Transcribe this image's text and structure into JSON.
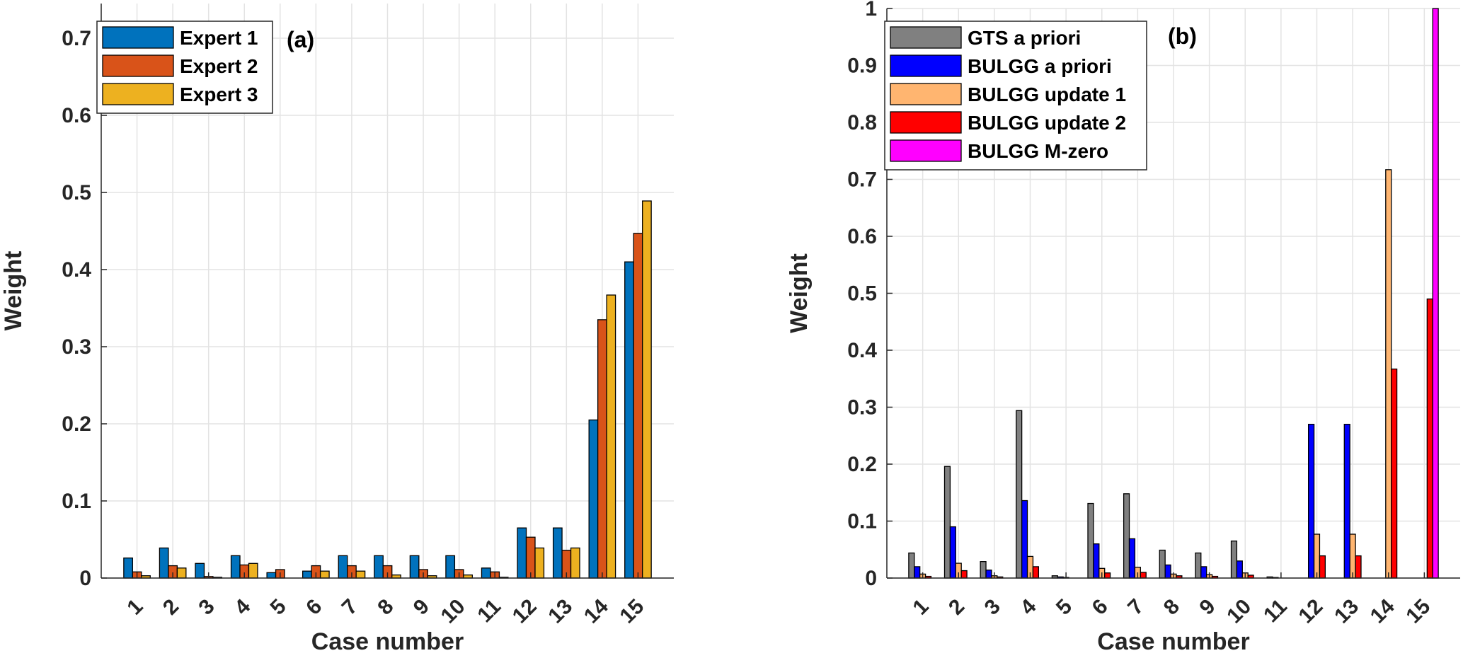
{
  "chart_data": [
    {
      "type": "bar",
      "panel_label": "(a)",
      "xlabel": "Case number",
      "ylabel": "Weight",
      "ylim": [
        0,
        0.745
      ],
      "yticks": [
        0,
        0.1,
        0.2,
        0.3,
        0.4,
        0.5,
        0.6,
        0.7
      ],
      "ytick_labels": [
        "0",
        "0.1",
        "0.2",
        "0.3",
        "0.4",
        "0.5",
        "0.6",
        "0.7"
      ],
      "categories": [
        "1",
        "2",
        "3",
        "4",
        "5",
        "6",
        "7",
        "8",
        "9",
        "10",
        "11",
        "12",
        "13",
        "14",
        "15"
      ],
      "grid": true,
      "legend_position": "top-left",
      "series": [
        {
          "name": "Expert 1",
          "color": "#0072BD",
          "values": [
            0.026,
            0.039,
            0.019,
            0.029,
            0.007,
            0.009,
            0.029,
            0.029,
            0.029,
            0.029,
            0.013,
            0.065,
            0.065,
            0.205,
            0.41
          ]
        },
        {
          "name": "Expert 2",
          "color": "#D95319",
          "values": [
            0.008,
            0.016,
            0.002,
            0.017,
            0.011,
            0.016,
            0.016,
            0.016,
            0.011,
            0.011,
            0.008,
            0.053,
            0.036,
            0.335,
            0.447
          ]
        },
        {
          "name": "Expert 3",
          "color": "#EDB120",
          "values": [
            0.003,
            0.013,
            0.001,
            0.019,
            0.0,
            0.009,
            0.009,
            0.004,
            0.003,
            0.004,
            0.001,
            0.039,
            0.039,
            0.367,
            0.489
          ]
        }
      ]
    },
    {
      "type": "bar",
      "panel_label": "(b)",
      "xlabel": "Case number",
      "ylabel": "Weight",
      "ylim": [
        0,
        1
      ],
      "yticks": [
        0,
        0.1,
        0.2,
        0.3,
        0.4,
        0.5,
        0.6,
        0.7,
        0.8,
        0.9,
        1
      ],
      "ytick_labels": [
        "0",
        "0.1",
        "0.2",
        "0.3",
        "0.4",
        "0.5",
        "0.6",
        "0.7",
        "0.8",
        "0.9",
        "1"
      ],
      "categories": [
        "1",
        "2",
        "3",
        "4",
        "5",
        "6",
        "7",
        "8",
        "9",
        "10",
        "11",
        "12",
        "13",
        "14",
        "15"
      ],
      "grid": true,
      "legend_position": "top-left",
      "series": [
        {
          "name": "GTS a priori",
          "color": "#808080",
          "values": [
            0.044,
            0.196,
            0.029,
            0.294,
            0.004,
            0.131,
            0.148,
            0.049,
            0.044,
            0.065,
            0.002,
            0.0,
            0.0,
            0.0,
            0.0
          ]
        },
        {
          "name": "BULGG a priori",
          "color": "#0000FF",
          "values": [
            0.02,
            0.09,
            0.014,
            0.136,
            0.002,
            0.06,
            0.069,
            0.023,
            0.02,
            0.03,
            0.001,
            0.27,
            0.27,
            0.0,
            0.0
          ]
        },
        {
          "name": "BULGG update 1",
          "color": "#FFB570",
          "values": [
            0.007,
            0.026,
            0.004,
            0.038,
            0.001,
            0.017,
            0.019,
            0.007,
            0.006,
            0.009,
            0.0,
            0.077,
            0.077,
            0.717,
            0.0
          ]
        },
        {
          "name": "BULGG update 2",
          "color": "#FF0000",
          "values": [
            0.003,
            0.013,
            0.002,
            0.02,
            0.0,
            0.009,
            0.01,
            0.004,
            0.003,
            0.005,
            0.0,
            0.039,
            0.039,
            0.367,
            0.49
          ]
        },
        {
          "name": "BULGG M-zero",
          "color": "#FF00FF",
          "values": [
            0,
            0,
            0,
            0,
            0,
            0,
            0,
            0,
            0,
            0,
            0,
            0,
            0,
            0,
            1.0
          ]
        }
      ]
    }
  ]
}
